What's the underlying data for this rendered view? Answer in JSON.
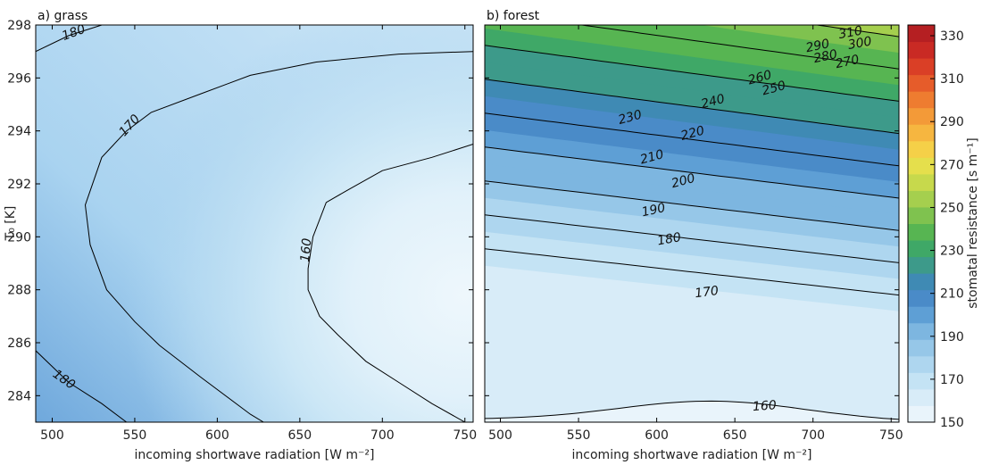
{
  "chart_data": [
    {
      "type": "contour",
      "title": "a) grass",
      "xlabel": "incoming shortwave radiation [W m⁻²]",
      "ylabel": "T₀ [K]",
      "xlim": [
        490,
        755
      ],
      "ylim": [
        283,
        298
      ],
      "xticks": [
        500,
        550,
        600,
        650,
        700,
        750
      ],
      "yticks": [
        284,
        286,
        288,
        290,
        292,
        294,
        296,
        298
      ],
      "contour_levels": [
        160,
        170,
        180
      ],
      "contours": [
        {
          "level": 180,
          "points": [
            [
              490,
              297.0
            ],
            [
              510,
              297.6
            ],
            [
              530,
              298.0
            ]
          ],
          "label": {
            "text": "180",
            "at": [
              513,
              297.7
            ],
            "angle": -20
          }
        },
        {
          "level": 170,
          "points": [
            [
              755,
              297.0
            ],
            [
              710,
              296.9
            ],
            [
              660,
              296.6
            ],
            [
              620,
              296.1
            ],
            [
              590,
              295.4
            ],
            [
              560,
              294.7
            ],
            [
              545,
              294.0
            ],
            [
              530,
              293.0
            ],
            [
              520,
              291.2
            ],
            [
              523,
              289.7
            ],
            [
              533,
              288.0
            ],
            [
              550,
              286.8
            ],
            [
              565,
              285.9
            ],
            [
              590,
              284.7
            ],
            [
              620,
              283.3
            ],
            [
              628,
              283.0
            ]
          ],
          "label": {
            "text": "170",
            "at": [
              547,
              294.2
            ],
            "angle": -48
          }
        },
        {
          "level": 160,
          "points": [
            [
              755,
              293.5
            ],
            [
              730,
              293.0
            ],
            [
              700,
              292.5
            ],
            [
              680,
              291.8
            ],
            [
              666,
              291.3
            ],
            [
              658,
              290.0
            ],
            [
              655,
              288.8
            ],
            [
              655,
              288.0
            ],
            [
              662,
              287.0
            ],
            [
              673,
              286.3
            ],
            [
              690,
              285.3
            ],
            [
              710,
              284.5
            ],
            [
              730,
              283.7
            ],
            [
              750,
              283.0
            ]
          ],
          "label": {
            "text": "160",
            "at": [
              654,
              289.5
            ],
            "angle": -85
          }
        },
        {
          "level": 180,
          "points": [
            [
              490,
              285.7
            ],
            [
              510,
              284.5
            ],
            [
              530,
              283.7
            ],
            [
              545,
              283.0
            ]
          ],
          "label": {
            "text": "180",
            "at": [
              507,
              284.6
            ],
            "angle": 35
          }
        }
      ]
    },
    {
      "type": "contour",
      "title": "b) forest",
      "xlabel": "incoming shortwave radiation [W m⁻²]",
      "xlim": [
        490,
        755
      ],
      "ylim": [
        283,
        298
      ],
      "xticks": [
        500,
        550,
        600,
        650,
        700,
        750
      ],
      "yticks": [
        284,
        286,
        288,
        290,
        292,
        294,
        296,
        298
      ],
      "contour_levels": [
        160,
        170,
        180,
        190,
        200,
        210,
        220,
        230,
        240,
        250,
        260,
        270,
        280,
        290,
        300,
        310
      ],
      "contour_labels": [
        {
          "text": "310",
          "at": [
            724,
            297.7
          ],
          "angle": -10
        },
        {
          "text": "300",
          "at": [
            730,
            297.3
          ],
          "angle": -10
        },
        {
          "text": "290",
          "at": [
            703,
            297.2
          ],
          "angle": -12
        },
        {
          "text": "280",
          "at": [
            708,
            296.8
          ],
          "angle": -12
        },
        {
          "text": "270",
          "at": [
            722,
            296.6
          ],
          "angle": -12
        },
        {
          "text": "260",
          "at": [
            666,
            296.0
          ],
          "angle": -15
        },
        {
          "text": "250",
          "at": [
            675,
            295.6
          ],
          "angle": -15
        },
        {
          "text": "240",
          "at": [
            636,
            295.1
          ],
          "angle": -15
        },
        {
          "text": "230",
          "at": [
            583,
            294.5
          ],
          "angle": -15
        },
        {
          "text": "220",
          "at": [
            623,
            293.9
          ],
          "angle": -15
        },
        {
          "text": "210",
          "at": [
            597,
            293.0
          ],
          "angle": -15
        },
        {
          "text": "200",
          "at": [
            617,
            292.1
          ],
          "angle": -15
        },
        {
          "text": "190",
          "at": [
            598,
            291.0
          ],
          "angle": -12
        },
        {
          "text": "180",
          "at": [
            608,
            289.9
          ],
          "angle": -10
        },
        {
          "text": "170",
          "at": [
            632,
            287.9
          ],
          "angle": -7
        },
        {
          "text": "160",
          "at": [
            669,
            283.6
          ],
          "angle": -4
        }
      ]
    }
  ],
  "colorbar": {
    "label": "stomatal resistance [s m⁻¹]",
    "min": 150,
    "max": 335,
    "ticks": [
      150,
      170,
      190,
      210,
      230,
      250,
      270,
      290,
      310,
      330
    ],
    "colors": [
      "#e9f4fb",
      "#d8ecf8",
      "#c4e3f4",
      "#aed6ef",
      "#96c7e8",
      "#7db6e0",
      "#5e9fd5",
      "#4a8bc8",
      "#3f8ab4",
      "#3d9a8a",
      "#3fa867",
      "#57b552",
      "#7fc24f",
      "#a5cf4e",
      "#c7d94c",
      "#e5df4c",
      "#f5d048",
      "#f6b640",
      "#f39a38",
      "#ee7c30",
      "#e65c2a",
      "#da3f26",
      "#c92a24",
      "#b51f22"
    ]
  }
}
